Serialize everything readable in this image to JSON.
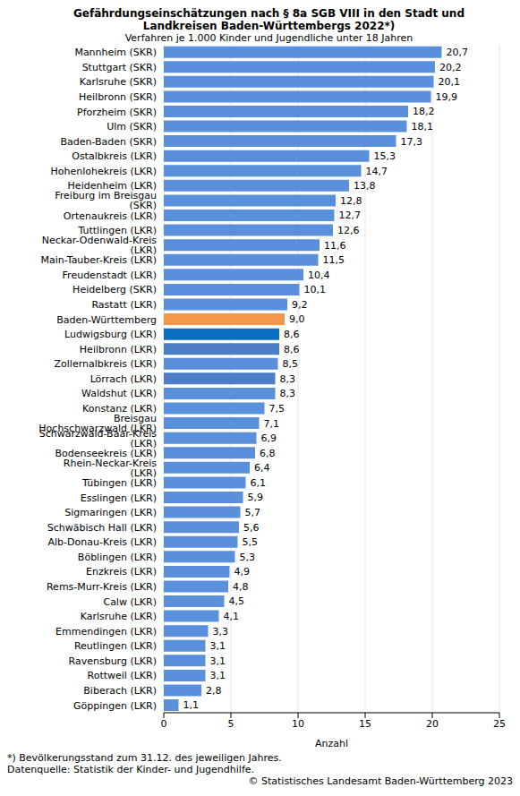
{
  "chart_data": {
    "type": "bar",
    "orientation": "horizontal",
    "title": "Gefährdungseinschätzungen nach § 8a SGB VIII in den Stadt und Landkreisen Baden-Württembergs 2022*)",
    "subtitle": "Verfahren je 1.000 Kinder und Jugendliche unter 18 Jahren",
    "x_label": "Anzahl",
    "annotations": [
      "*) Bevölkerungsstand zum 31.12. des jeweiligen Jahres.",
      "Datenquelle: Statistik der Kinder- und Jugendhilfe.",
      "© Statistisches Landesamt Baden-Württemberg 2023"
    ],
    "categories": [
      "Mannheim (SKR)",
      "Stuttgart (SKR)",
      "Karlsruhe (SKR)",
      "Heilbronn (SKR)",
      "Pforzheim (SKR)",
      "Ulm (SKR)",
      "Baden-Baden (SKR)",
      "Ostalbkreis (LKR)",
      "Hohenlohekreis (LKR)",
      "Heidenheim (LKR)",
      "Freiburg im Breisgau (SKR)",
      "Ortenaukreis (LKR)",
      "Tuttlingen (LKR)",
      "Neckar-Odenwald-Kreis (LKR)",
      "Main-Tauber-Kreis (LKR)",
      "Freudenstadt (LKR)",
      "Heidelberg (SKR)",
      "Rastatt (LKR)",
      "Baden-Württemberg",
      "Ludwigsburg (LKR)",
      "Heilbronn (LKR)",
      "Zollernalbkreis (LKR)",
      "Lörrach (LKR)",
      "Waldshut (LKR)",
      "Konstanz (LKR)",
      "Breisgau Hochschwarzwald (LKR)",
      "Schwarzwald-Baar-Kreis (LKR)",
      "Bodenseekreis (LKR)",
      "Rhein-Neckar-Kreis (LKR)",
      "Tübingen (LKR)",
      "Esslingen (LKR)",
      "Sigmaringen (LKR)",
      "Schwäbisch Hall (LKR)",
      "Alb-Donau-Kreis (LKR)",
      "Böblingen (LKR)",
      "Enzkreis (LKR)",
      "Rems-Murr-Kreis (LKR)",
      "Calw (LKR)",
      "Karlsruhe (LKR)",
      "Emmendingen (LKR)",
      "Reutlingen (LKR)",
      "Ravensburg (LKR)",
      "Rottweil (LKR)",
      "Biberach (LKR)",
      "Göppingen (LKR)"
    ],
    "values": [
      20.7,
      20.2,
      20.1,
      19.9,
      18.2,
      18.1,
      17.3,
      15.3,
      14.7,
      13.8,
      12.8,
      12.7,
      12.6,
      11.6,
      11.5,
      10.4,
      10.1,
      9.2,
      9.0,
      8.6,
      8.6,
      8.5,
      8.3,
      8.3,
      7.5,
      7.1,
      6.9,
      6.8,
      6.4,
      6.1,
      5.9,
      5.7,
      5.6,
      5.5,
      5.3,
      4.9,
      4.8,
      4.5,
      4.1,
      3.3,
      3.1,
      3.1,
      3.1,
      2.8,
      1.1
    ],
    "value_labels": [
      "20,7",
      "20,2",
      "20,1",
      "19,9",
      "18,2",
      "18,1",
      "17,3",
      "15,3",
      "14,7",
      "13,8",
      "12,8",
      "12,7",
      "12,6",
      "11,6",
      "11,5",
      "10,4",
      "10,1",
      "9,2",
      "9,0",
      "8,6",
      "8,6",
      "8,5",
      "8,3",
      "8,3",
      "7,5",
      "7,1",
      "6,9",
      "6,8",
      "6,4",
      "6,1",
      "5,9",
      "5,7",
      "5,6",
      "5,5",
      "5,3",
      "4,9",
      "4,8",
      "4,5",
      "4,1",
      "3,3",
      "3,1",
      "3,1",
      "3,1",
      "2,8",
      "1,1"
    ],
    "colors": [
      "#5a8fdc",
      "#5a8fdc",
      "#5a8fdc",
      "#5a8fdc",
      "#5a8fdc",
      "#5a8fdc",
      "#5a8fdc",
      "#5a8fdc",
      "#5a8fdc",
      "#5a8fdc",
      "#5a8fdc",
      "#5a8fdc",
      "#5a8fdc",
      "#5a8fdc",
      "#5a8fdc",
      "#5a8fdc",
      "#5a8fdc",
      "#5a8fdc",
      "#f5974a",
      "#0a6fc2",
      "#4b7ec7",
      "#5a8fdc",
      "#4b7ec7",
      "#5a8fdc",
      "#5a8fdc",
      "#5a8fdc",
      "#5a8fdc",
      "#5a8fdc",
      "#5a8fdc",
      "#5a8fdc",
      "#5a8fdc",
      "#5a8fdc",
      "#5a8fdc",
      "#5a8fdc",
      "#5a8fdc",
      "#5a8fdc",
      "#5a8fdc",
      "#5a8fdc",
      "#5a8fdc",
      "#5a8fdc",
      "#5a8fdc",
      "#5a8fdc",
      "#5a8fdc",
      "#5a8fdc",
      "#5a8fdc"
    ],
    "xlim": [
      0,
      25
    ],
    "xticks": [
      0,
      5,
      10,
      15,
      20,
      25
    ],
    "grid": true,
    "data_labels": true
  }
}
